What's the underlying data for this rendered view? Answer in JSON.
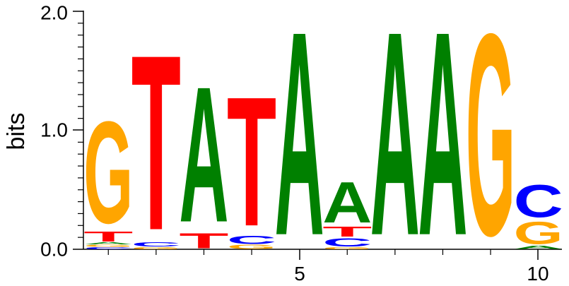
{
  "chart_data": {
    "type": "sequence-logo",
    "ylabel": "bits",
    "ylim": [
      0,
      2
    ],
    "yticks": [
      "0.0",
      "1.0",
      "2.0"
    ],
    "xticks": [
      {
        "position": 5,
        "label": "5"
      },
      {
        "position": 10,
        "label": "10"
      }
    ],
    "colors": {
      "A": "#008000",
      "C": "#0000ff",
      "G": "#ffa500",
      "T": "#ff0000"
    },
    "positions": [
      {
        "pos": 1,
        "letters": [
          {
            "letter": "C",
            "bits": 0.02
          },
          {
            "letter": "G",
            "bits": 0.02
          },
          {
            "letter": "A",
            "bits": 0.02
          },
          {
            "letter": "T",
            "bits": 0.1
          },
          {
            "letter": "G",
            "bits": 1.0
          }
        ]
      },
      {
        "pos": 2,
        "letters": [
          {
            "letter": "G",
            "bits": 0.02
          },
          {
            "letter": "C",
            "bits": 0.04
          },
          {
            "letter": "T",
            "bits": 1.72
          }
        ]
      },
      {
        "pos": 3,
        "letters": [
          {
            "letter": "T",
            "bits": 0.15
          },
          {
            "letter": "A",
            "bits": 1.33
          }
        ]
      },
      {
        "pos": 4,
        "letters": [
          {
            "letter": "G",
            "bits": 0.04
          },
          {
            "letter": "C",
            "bits": 0.08
          },
          {
            "letter": "T",
            "bits": 1.27
          }
        ]
      },
      {
        "pos": 5,
        "letters": [
          {
            "letter": "A",
            "bits": 2.0
          }
        ]
      },
      {
        "pos": 6,
        "letters": [
          {
            "letter": "G",
            "bits": 0.02
          },
          {
            "letter": "C",
            "bits": 0.08
          },
          {
            "letter": "T",
            "bits": 0.1
          },
          {
            "letter": "A",
            "bits": 0.4
          }
        ]
      },
      {
        "pos": 7,
        "letters": [
          {
            "letter": "A",
            "bits": 2.0
          }
        ]
      },
      {
        "pos": 8,
        "letters": [
          {
            "letter": "A",
            "bits": 2.0
          }
        ]
      },
      {
        "pos": 9,
        "letters": [
          {
            "letter": "G",
            "bits": 1.98
          }
        ]
      },
      {
        "pos": 10,
        "letters": [
          {
            "letter": "A",
            "bits": 0.03
          },
          {
            "letter": "G",
            "bits": 0.22
          },
          {
            "letter": "C",
            "bits": 0.32
          }
        ]
      }
    ]
  }
}
